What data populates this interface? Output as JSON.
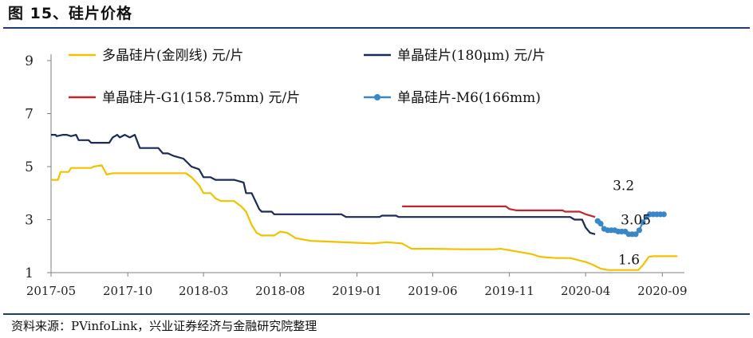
{
  "figure_title": "图 15、硅片价格",
  "source_text": "资料来源：PVinfoLink，兴业证券经济与金融研究院整理",
  "colors": {
    "rule": "#1f3b7a",
    "axis": "#808080",
    "multi": "#f2c200",
    "mono180": "#1b2a57",
    "g1": "#c0272d",
    "m6": "#3a87c8"
  },
  "chart_data": {
    "type": "line",
    "title": "",
    "xlabel": "",
    "ylabel": "",
    "ylim": [
      1,
      9
    ],
    "yticks": [
      1,
      3,
      5,
      7,
      9
    ],
    "xlim": [
      "2017-05-01",
      "2020-10-15"
    ],
    "xticks": [
      "2017-05",
      "2017-10",
      "2018-03",
      "2018-08",
      "2019-01",
      "2019-06",
      "2019-11",
      "2020-04",
      "2020-09"
    ],
    "grid": false,
    "legend_position": "top",
    "series": [
      {
        "name": "多晶硅片(金刚线) 元/片",
        "color": "#f2c200",
        "marker": "none",
        "points": [
          [
            "2017-05-01",
            4.5
          ],
          [
            "2017-05-15",
            4.5
          ],
          [
            "2017-05-20",
            4.8
          ],
          [
            "2017-06-05",
            4.8
          ],
          [
            "2017-06-10",
            4.95
          ],
          [
            "2017-07-20",
            4.95
          ],
          [
            "2017-07-25",
            5.0
          ],
          [
            "2017-08-10",
            5.05
          ],
          [
            "2017-08-20",
            4.7
          ],
          [
            "2017-09-01",
            4.75
          ],
          [
            "2017-12-01",
            4.75
          ],
          [
            "2018-01-01",
            4.75
          ],
          [
            "2018-01-25",
            4.75
          ],
          [
            "2018-02-05",
            4.6
          ],
          [
            "2018-02-20",
            4.3
          ],
          [
            "2018-03-01",
            4.0
          ],
          [
            "2018-03-15",
            4.0
          ],
          [
            "2018-03-25",
            3.8
          ],
          [
            "2018-04-05",
            3.7
          ],
          [
            "2018-05-01",
            3.7
          ],
          [
            "2018-05-15",
            3.5
          ],
          [
            "2018-05-25",
            3.3
          ],
          [
            "2018-06-05",
            2.8
          ],
          [
            "2018-06-15",
            2.5
          ],
          [
            "2018-06-25",
            2.4
          ],
          [
            "2018-07-20",
            2.4
          ],
          [
            "2018-08-01",
            2.55
          ],
          [
            "2018-08-15",
            2.5
          ],
          [
            "2018-09-01",
            2.3
          ],
          [
            "2018-10-01",
            2.2
          ],
          [
            "2019-02-01",
            2.1
          ],
          [
            "2019-03-01",
            2.15
          ],
          [
            "2019-04-01",
            2.1
          ],
          [
            "2019-04-20",
            1.9
          ],
          [
            "2019-06-01",
            1.9
          ],
          [
            "2019-08-01",
            1.88
          ],
          [
            "2019-10-01",
            1.88
          ],
          [
            "2019-10-15",
            1.9
          ],
          [
            "2019-11-15",
            1.8
          ],
          [
            "2019-12-15",
            1.7
          ],
          [
            "2020-01-01",
            1.6
          ],
          [
            "2020-02-01",
            1.55
          ],
          [
            "2020-03-01",
            1.55
          ],
          [
            "2020-04-01",
            1.4
          ],
          [
            "2020-04-15",
            1.3
          ],
          [
            "2020-05-01",
            1.15
          ],
          [
            "2020-05-15",
            1.1
          ],
          [
            "2020-07-15",
            1.1
          ],
          [
            "2020-07-25",
            1.3
          ],
          [
            "2020-08-05",
            1.6
          ],
          [
            "2020-08-15",
            1.62
          ],
          [
            "2020-10-01",
            1.62
          ]
        ]
      },
      {
        "name": "单晶硅片(180μm) 元/片",
        "color": "#1b2a57",
        "marker": "none",
        "points": [
          [
            "2017-05-01",
            6.2
          ],
          [
            "2017-05-10",
            6.2
          ],
          [
            "2017-05-12",
            6.15
          ],
          [
            "2017-05-25",
            6.2
          ],
          [
            "2017-06-01",
            6.2
          ],
          [
            "2017-06-10",
            6.15
          ],
          [
            "2017-06-20",
            6.2
          ],
          [
            "2017-06-25",
            6.0
          ],
          [
            "2017-07-15",
            6.0
          ],
          [
            "2017-07-20",
            5.9
          ],
          [
            "2017-08-25",
            5.9
          ],
          [
            "2017-09-01",
            6.1
          ],
          [
            "2017-09-10",
            6.2
          ],
          [
            "2017-09-15",
            6.1
          ],
          [
            "2017-09-25",
            6.2
          ],
          [
            "2017-10-05",
            6.1
          ],
          [
            "2017-10-15",
            6.2
          ],
          [
            "2017-10-25",
            5.7
          ],
          [
            "2017-11-10",
            5.7
          ],
          [
            "2017-12-01",
            5.7
          ],
          [
            "2017-12-10",
            5.5
          ],
          [
            "2017-12-20",
            5.5
          ],
          [
            "2018-01-01",
            5.4
          ],
          [
            "2018-01-20",
            5.3
          ],
          [
            "2018-02-05",
            5.0
          ],
          [
            "2018-02-20",
            4.9
          ],
          [
            "2018-03-01",
            4.6
          ],
          [
            "2018-03-15",
            4.6
          ],
          [
            "2018-03-25",
            4.5
          ],
          [
            "2018-04-10",
            4.5
          ],
          [
            "2018-05-01",
            4.5
          ],
          [
            "2018-05-20",
            4.4
          ],
          [
            "2018-05-25",
            4.0
          ],
          [
            "2018-06-05",
            4.0
          ],
          [
            "2018-06-20",
            3.4
          ],
          [
            "2018-06-25",
            3.3
          ],
          [
            "2018-07-15",
            3.3
          ],
          [
            "2018-07-20",
            3.2
          ],
          [
            "2018-12-01",
            3.2
          ],
          [
            "2018-12-10",
            3.1
          ],
          [
            "2019-02-15",
            3.1
          ],
          [
            "2019-02-20",
            3.15
          ],
          [
            "2019-03-20",
            3.15
          ],
          [
            "2019-03-25",
            3.1
          ],
          [
            "2019-09-01",
            3.1
          ],
          [
            "2019-11-15",
            3.1
          ],
          [
            "2020-03-01",
            3.1
          ],
          [
            "2020-03-10",
            3.0
          ],
          [
            "2020-03-25",
            3.0
          ],
          [
            "2020-04-01",
            2.7
          ],
          [
            "2020-04-10",
            2.5
          ],
          [
            "2020-04-20",
            2.45
          ]
        ]
      },
      {
        "name": "单晶硅片-G1(158.75mm) 元/片",
        "color": "#c0272d",
        "marker": "none",
        "points": [
          [
            "2019-04-01",
            3.5
          ],
          [
            "2019-10-25",
            3.5
          ],
          [
            "2019-11-01",
            3.4
          ],
          [
            "2019-11-15",
            3.35
          ],
          [
            "2020-02-15",
            3.35
          ],
          [
            "2020-02-20",
            3.3
          ],
          [
            "2020-03-20",
            3.3
          ],
          [
            "2020-04-01",
            3.2
          ],
          [
            "2020-04-20",
            3.1
          ]
        ]
      },
      {
        "name": "单晶硅片-M6(166mm)",
        "color": "#3a87c8",
        "marker": "circle",
        "points": [
          [
            "2020-04-25",
            2.95
          ],
          [
            "2020-05-01",
            2.85
          ],
          [
            "2020-05-08",
            2.65
          ],
          [
            "2020-05-15",
            2.6
          ],
          [
            "2020-05-22",
            2.6
          ],
          [
            "2020-05-29",
            2.6
          ],
          [
            "2020-06-05",
            2.55
          ],
          [
            "2020-06-12",
            2.55
          ],
          [
            "2020-06-19",
            2.55
          ],
          [
            "2020-06-26",
            2.45
          ],
          [
            "2020-07-03",
            2.45
          ],
          [
            "2020-07-10",
            2.45
          ],
          [
            "2020-07-17",
            2.6
          ],
          [
            "2020-07-24",
            2.9
          ],
          [
            "2020-07-31",
            3.1
          ],
          [
            "2020-08-07",
            3.2
          ],
          [
            "2020-08-14",
            3.2
          ],
          [
            "2020-08-21",
            3.2
          ],
          [
            "2020-08-28",
            3.2
          ],
          [
            "2020-09-04",
            3.2
          ]
        ]
      }
    ],
    "annotations": [
      {
        "text": "3.2",
        "x": "2020-05-25",
        "y": 4.3
      },
      {
        "text": "3.05",
        "x": "2020-06-10",
        "y": 3.0
      },
      {
        "text": "1.6",
        "x": "2020-06-05",
        "y": 1.5
      }
    ]
  }
}
